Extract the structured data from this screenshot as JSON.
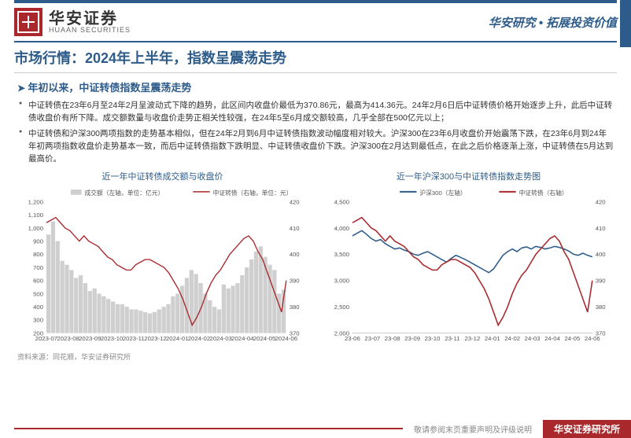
{
  "header": {
    "company_cn": "华安证券",
    "company_en": "HUAAN SECURITIES",
    "tagline_a": "华安研究",
    "tagline_b": "拓展投资价值"
  },
  "title": "市场行情：2024年上半年，指数呈震荡走势",
  "subheading": "年初以来，中证转债指数呈震荡走势",
  "bullet1": "中证转债在23年6月至24年2月呈波动式下降的趋势，此区间内收盘价最低为370.86元，最高为414.36元。24年2月6日后中证转债价格开始逐步上升，此后中证转债收盘价有所下降。成交额数量与收盘价走势正相关性较强，在24年5至6月成交额较高，几乎全部在500亿元以上；",
  "bullet2": "中证转债和沪深300两项指数的走势基本相似，但在24年2月到6月中证转债指数波动幅度相对较大。沪深300在23年6月收盘价开始震荡下跌，在23年6月到24年年初两项指数收盘价走势基本一致，而后中证转债指数下跌明显、中证转债收盘价下跌。沪深300在2月达到最低点，在此之后价格逐渐上涨，中证转债在5月达到最高价。",
  "chart1": {
    "title": "近一年中证转债成交额与收盘价",
    "legend_bar": "成交额（左轴，单位：亿元）",
    "legend_line": "中证转债（右轴，单位：元）",
    "yl": {
      "min": 200,
      "max": 1200,
      "ticks": [
        200,
        300,
        400,
        500,
        600,
        700,
        800,
        900,
        1000,
        1100,
        1200
      ]
    },
    "yr": {
      "min": 370,
      "max": 420,
      "ticks": [
        370,
        380,
        390,
        400,
        410,
        420
      ]
    },
    "x": [
      "2023-07",
      "2023-08",
      "2023-09",
      "2023-10",
      "2023-11",
      "2023-12",
      "2024-01",
      "2024-02",
      "2024-03",
      "2024-04",
      "2024-05",
      "2024-06"
    ],
    "bars": [
      950,
      1050,
      900,
      750,
      720,
      680,
      620,
      640,
      580,
      520,
      540,
      500,
      480,
      460,
      440,
      420,
      420,
      400,
      380,
      380,
      370,
      360,
      350,
      360,
      380,
      400,
      420,
      480,
      500,
      560,
      620,
      680,
      650,
      580,
      500,
      450,
      400,
      380,
      570,
      540,
      560,
      580,
      640,
      700,
      760,
      820,
      860,
      780,
      720,
      680,
      500,
      530
    ],
    "line": [
      412,
      413,
      414,
      412,
      410,
      409,
      407,
      405,
      407,
      405,
      404,
      403,
      401,
      399,
      398,
      396,
      395,
      394,
      394,
      396,
      397,
      398,
      398,
      397,
      396,
      395,
      393,
      390,
      387,
      383,
      378,
      373,
      376,
      380,
      385,
      389,
      392,
      394,
      397,
      400,
      402,
      404,
      406,
      407,
      405,
      401,
      398,
      393,
      388,
      383,
      378,
      390
    ],
    "bar_color": "#cfcfcf",
    "line_color": "#a8282c"
  },
  "chart2": {
    "title": "近一年沪深300与中证转债指数走势图",
    "legend_a": "沪深300（左轴）",
    "legend_b": "中证转债（右轴）",
    "yl": {
      "min": 2000,
      "max": 4500,
      "ticks": [
        2000,
        2500,
        3000,
        3500,
        4000,
        4500
      ]
    },
    "yr": {
      "min": 370,
      "max": 420,
      "ticks": [
        370,
        380,
        390,
        400,
        410,
        420
      ]
    },
    "x": [
      "23-06",
      "23-07",
      "23-08",
      "23-09",
      "23-10",
      "23-11",
      "23-12",
      "24-01",
      "24-02",
      "24-03",
      "24-04",
      "24-05",
      "24-06"
    ],
    "series_a": [
      3850,
      3900,
      3950,
      3880,
      3800,
      3750,
      3780,
      3700,
      3650,
      3600,
      3620,
      3580,
      3550,
      3500,
      3480,
      3520,
      3550,
      3500,
      3450,
      3400,
      3350,
      3420,
      3480,
      3440,
      3400,
      3350,
      3300,
      3250,
      3200,
      3150,
      3220,
      3350,
      3480,
      3550,
      3600,
      3550,
      3620,
      3640,
      3600,
      3650,
      3630,
      3600,
      3620,
      3650,
      3630,
      3600,
      3560,
      3500,
      3480,
      3520,
      3480,
      3450
    ],
    "series_b": [
      412,
      413,
      414,
      412,
      410,
      409,
      407,
      405,
      407,
      405,
      404,
      403,
      401,
      399,
      398,
      396,
      395,
      394,
      394,
      396,
      397,
      398,
      398,
      397,
      396,
      395,
      393,
      390,
      387,
      383,
      378,
      373,
      376,
      380,
      385,
      389,
      392,
      394,
      397,
      400,
      402,
      404,
      406,
      407,
      405,
      401,
      398,
      393,
      388,
      383,
      378,
      390
    ],
    "color_a": "#2e5c8a",
    "color_b": "#a8282c"
  },
  "source": "资料来源：同花顺，华安证券研究所",
  "footer": {
    "disclaimer": "敬请参阅末页重要声明及评级说明",
    "badge": "华安证券研究所"
  }
}
